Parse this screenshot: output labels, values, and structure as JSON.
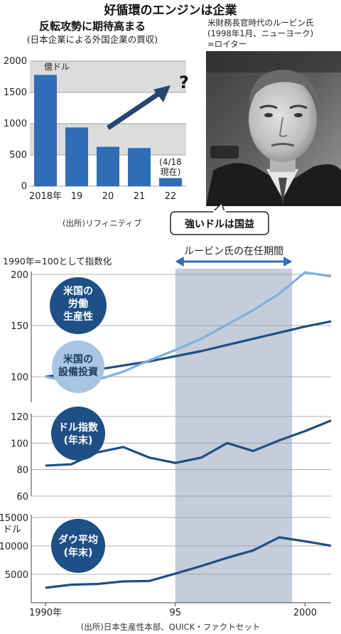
{
  "page": {
    "title": "好循環のエンジンは企業"
  },
  "photo": {
    "caption_lines": [
      "米財務長官時代のルービン氏",
      "(1998年1月、ニューヨーク)",
      "=ロイター"
    ],
    "quote": "強いドルは国益"
  },
  "chart_data": [
    {
      "type": "bar",
      "title": "反転攻勢に期待高まる",
      "subtitle": "(日本企業による外国企業の買収)",
      "unit": "億ドル",
      "categories": [
        "2018年",
        "19",
        "20",
        "21",
        "22"
      ],
      "values": [
        1780,
        940,
        630,
        610,
        130
      ],
      "ylim": [
        0,
        2000
      ],
      "yticks": [
        0,
        500,
        1000,
        1500,
        2000
      ],
      "bar_color": "#2f6db5",
      "band_color": "#dcdcdc",
      "annotation_lines": [
        "(4/18",
        "現在)"
      ],
      "arrow_label": "?",
      "source": "(出所)リフィニティブ"
    },
    {
      "type": "line",
      "note": "1990年=100として指数化",
      "ylim": [
        90,
        205
      ],
      "yticks": [
        100,
        150,
        200
      ],
      "x": [
        1990,
        1991,
        1992,
        1993,
        1994,
        1995,
        1996,
        1997,
        1998,
        1999,
        2000,
        2001
      ],
      "series": [
        {
          "name_lines": [
            "米国の",
            "労働",
            "生産性"
          ],
          "color": "#1e4f86",
          "values": [
            100,
            103,
            107,
            111,
            115,
            120,
            125,
            131,
            137,
            143,
            149,
            154
          ]
        },
        {
          "name_lines": [
            "米国の",
            "設備投資"
          ],
          "color": "#7fb0dc",
          "values": [
            100,
            95,
            97,
            105,
            116,
            126,
            137,
            151,
            165,
            181,
            202,
            198
          ]
        }
      ]
    },
    {
      "type": "line",
      "label_lines": [
        "ドル指数",
        "(年末)"
      ],
      "ylim": [
        60,
        120
      ],
      "yticks": [
        60,
        80,
        100,
        120
      ],
      "x": [
        1990,
        1991,
        1992,
        1993,
        1994,
        1995,
        1996,
        1997,
        1998,
        1999,
        2000,
        2001
      ],
      "series": [
        {
          "color": "#1e4f86",
          "values": [
            83,
            84,
            93,
            97,
            89,
            85,
            89,
            100,
            94,
            102,
            109,
            117
          ]
        }
      ]
    },
    {
      "type": "line",
      "label_lines": [
        "ダウ平均",
        "(年末)"
      ],
      "unit": "ドル",
      "ylim": [
        0,
        15000
      ],
      "yticks": [
        5000,
        10000,
        15000
      ],
      "x": [
        1990,
        1991,
        1992,
        1993,
        1994,
        1995,
        1996,
        1997,
        1998,
        1999,
        2000,
        2001
      ],
      "series": [
        {
          "color": "#1e4f86",
          "values": [
            2630,
            3170,
            3300,
            3750,
            3830,
            5120,
            6450,
            7900,
            9200,
            11500,
            10800,
            10020
          ]
        }
      ]
    }
  ],
  "timeline": {
    "xtick_labels": [
      "1990年",
      "95",
      "2000"
    ],
    "tenure_label": "ルービン氏の在任期間",
    "tenure_start": 1995,
    "tenure_end": 1999.5,
    "band_color": "#c5ccdb",
    "source": "(出所)日本生産性本部、QUICK・ファクトセット"
  }
}
